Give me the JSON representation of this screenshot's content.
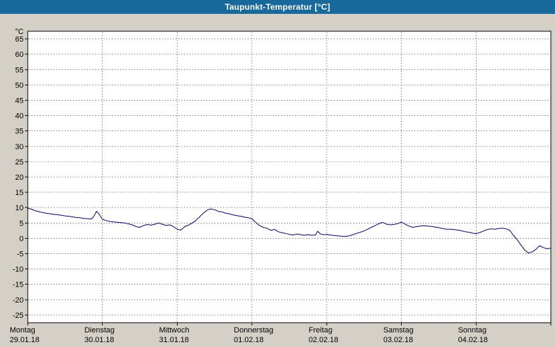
{
  "window": {
    "title": "Taupunkt-Temperatur [°C]"
  },
  "colors": {
    "titlebar_bg": "#17689b",
    "titlebar_text": "#ffffff",
    "window_bg": "#d4d0c8",
    "plot_bg": "#ffffff",
    "grid": "#9c9c9c",
    "axis": "#000000",
    "label_text": "#000000",
    "line": "#000080"
  },
  "chart_data": {
    "type": "line",
    "title": "Taupunkt-Temperatur [°C]",
    "y_unit": "°C",
    "ylabel": "°C",
    "xlabel": "",
    "ylim": [
      -27.5,
      67.5
    ],
    "xlim": [
      0,
      7
    ],
    "y_ticks": [
      65,
      60,
      55,
      50,
      45,
      40,
      35,
      30,
      25,
      20,
      15,
      10,
      5,
      0,
      -5,
      -10,
      -15,
      -20,
      -25
    ],
    "grid": "dashed",
    "legend": "none",
    "x_unit": "days",
    "days": [
      {
        "weekday": "Montag",
        "date": "29.01.18"
      },
      {
        "weekday": "Dienstag",
        "date": "30.01.18"
      },
      {
        "weekday": "Mittwoch",
        "date": "31.01.18"
      },
      {
        "weekday": "Donnerstag",
        "date": "01.02.18"
      },
      {
        "weekday": "Freitag",
        "date": "02.02.18"
      },
      {
        "weekday": "Samstag",
        "date": "03.02.18"
      },
      {
        "weekday": "Sonntag",
        "date": "04.02.18"
      }
    ],
    "series": [
      {
        "name": "Taupunkt-Temperatur",
        "color": "#000080",
        "x": [
          0,
          0.05,
          0.1,
          0.15,
          0.2,
          0.25,
          0.3,
          0.35,
          0.4,
          0.45,
          0.5,
          0.55,
          0.6,
          0.65,
          0.7,
          0.75,
          0.8,
          0.85,
          0.88,
          0.92,
          0.95,
          1,
          1.05,
          1.1,
          1.2,
          1.3,
          1.4,
          1.45,
          1.5,
          1.55,
          1.6,
          1.65,
          1.7,
          1.75,
          1.8,
          1.85,
          1.9,
          1.95,
          2,
          2.05,
          2.1,
          2.15,
          2.2,
          2.25,
          2.3,
          2.35,
          2.4,
          2.45,
          2.5,
          2.55,
          2.6,
          2.65,
          2.7,
          2.75,
          2.8,
          2.85,
          2.9,
          2.95,
          3,
          3.05,
          3.1,
          3.15,
          3.2,
          3.25,
          3.3,
          3.35,
          3.4,
          3.45,
          3.5,
          3.55,
          3.6,
          3.65,
          3.7,
          3.75,
          3.8,
          3.85,
          3.88,
          3.92,
          3.95,
          4,
          4.05,
          4.1,
          4.15,
          4.2,
          4.25,
          4.3,
          4.35,
          4.4,
          4.45,
          4.5,
          4.55,
          4.6,
          4.65,
          4.7,
          4.75,
          4.8,
          4.85,
          4.9,
          4.95,
          5,
          5.05,
          5.1,
          5.15,
          5.2,
          5.25,
          5.3,
          5.35,
          5.4,
          5.45,
          5.5,
          5.55,
          5.6,
          5.65,
          5.7,
          5.75,
          5.8,
          5.85,
          5.9,
          5.95,
          6,
          6.05,
          6.1,
          6.15,
          6.2,
          6.25,
          6.3,
          6.35,
          6.4,
          6.45,
          6.5,
          6.55,
          6.6,
          6.65,
          6.7,
          6.75,
          6.8,
          6.85,
          6.9,
          6.95,
          7
        ],
        "y": [
          9.8,
          9.5,
          9.0,
          8.7,
          8.4,
          8.2,
          8.0,
          7.8,
          7.7,
          7.5,
          7.3,
          7.2,
          7.0,
          6.8,
          6.7,
          6.5,
          6.4,
          6.3,
          7.0,
          8.8,
          8.0,
          6.2,
          5.8,
          5.5,
          5.2,
          5.0,
          4.4,
          3.8,
          3.6,
          4.2,
          4.5,
          4.3,
          4.6,
          5.0,
          4.6,
          4.2,
          4.4,
          3.8,
          3.0,
          2.7,
          3.8,
          4.3,
          5.0,
          5.8,
          7.0,
          8.2,
          9.2,
          9.6,
          9.3,
          8.8,
          8.6,
          8.2,
          8.0,
          7.6,
          7.4,
          7.2,
          6.9,
          6.7,
          6.4,
          5.2,
          4.2,
          3.6,
          3.3,
          2.6,
          2.9,
          2.2,
          1.8,
          1.6,
          1.3,
          1.1,
          1.4,
          1.2,
          1.0,
          1.2,
          1.0,
          1.1,
          2.3,
          1.4,
          1.2,
          1.3,
          1.1,
          0.9,
          0.8,
          0.7,
          0.6,
          0.8,
          1.2,
          1.6,
          2.0,
          2.4,
          3.0,
          3.6,
          4.2,
          4.8,
          5.2,
          4.6,
          4.4,
          4.5,
          4.8,
          5.3,
          4.6,
          4.0,
          3.6,
          3.8,
          4.0,
          4.1,
          4.0,
          3.9,
          3.7,
          3.5,
          3.2,
          3.0,
          3.0,
          2.9,
          2.7,
          2.5,
          2.2,
          2.0,
          1.7,
          1.5,
          1.9,
          2.4,
          2.9,
          3.1,
          3.0,
          3.2,
          3.3,
          3.1,
          2.6,
          1.0,
          -0.5,
          -2.2,
          -3.8,
          -4.8,
          -4.4,
          -3.6,
          -2.4,
          -3.0,
          -3.4,
          -3.2
        ]
      }
    ]
  }
}
